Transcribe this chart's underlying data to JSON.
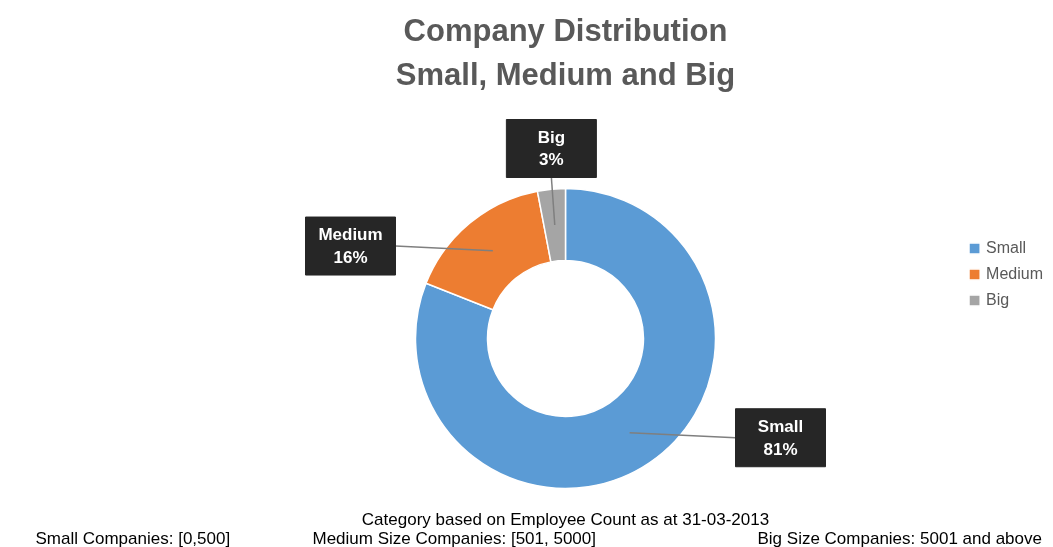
{
  "chart_data": {
    "type": "donut",
    "title": "Company Distribution\nSmall, Medium and Big",
    "categories": [
      "Small",
      "Medium",
      "Big"
    ],
    "values": [
      81,
      16,
      3
    ],
    "colors": [
      "#5b9bd5",
      "#ed7d31",
      "#a5a5a5"
    ],
    "value_labels": [
      "81%",
      "16%",
      "3%"
    ],
    "legend": "right",
    "annotations": [
      "Category based on Employee Count as at 31-03-2013",
      "Small Companies: [0,500]",
      "Medium Size Companies: [501, 5000]",
      "Big Size Companies: 5001 and above"
    ]
  }
}
